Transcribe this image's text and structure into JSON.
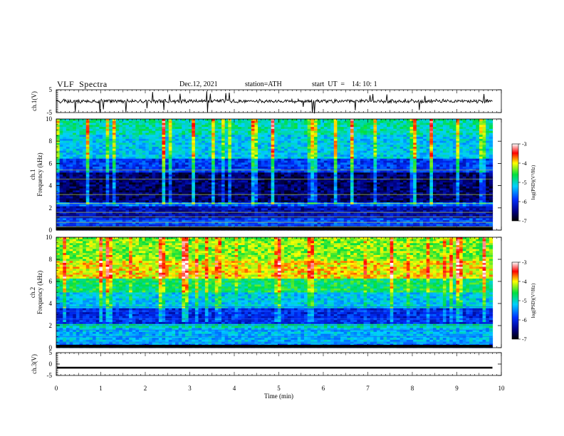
{
  "header": {
    "title": "VLF  Spectra",
    "date": "Dec.12, 2021",
    "station": "station=ATH",
    "start_ut": "start  UT  =    14: 10: 1"
  },
  "chart_data": [
    {
      "type": "line",
      "panel": "ch1-waveform",
      "ylabel": "ch.1(V)",
      "ylim": [
        -5,
        5
      ],
      "yticks": [
        "5",
        "-5"
      ],
      "xlim": [
        0,
        10
      ],
      "note": "noisy waveform centred near 0 V with spikes, 0 to ~9.8 min"
    },
    {
      "type": "heatmap",
      "panel": "ch1-spectrogram",
      "ylabel": "ch.1\nFrequency (kHz)",
      "ylim": [
        0,
        10
      ],
      "yticks": [
        "0",
        "2",
        "4",
        "6",
        "8",
        "10"
      ],
      "xlim": [
        0,
        10
      ],
      "colorbar": {
        "label": "log(PSD)(V²/Hz)",
        "range": [
          -7,
          -3
        ],
        "ticks": [
          "-3",
          "-4",
          "-5",
          "-6",
          "-7"
        ]
      },
      "bands_kHz_logpsd": [
        [
          0,
          0.4,
          -6.5
        ],
        [
          0.4,
          1.0,
          -5.8
        ],
        [
          1.0,
          2.2,
          -6.3
        ],
        [
          2.2,
          2.5,
          -5.6
        ],
        [
          2.5,
          5.2,
          -6.6
        ],
        [
          5.2,
          6.5,
          -5.9
        ],
        [
          6.5,
          8.5,
          -5.2
        ],
        [
          8.5,
          10,
          -4.9
        ]
      ]
    },
    {
      "type": "heatmap",
      "panel": "ch2-spectrogram",
      "ylabel": "ch.2\nFrequency (kHz)",
      "ylim": [
        0,
        10
      ],
      "yticks": [
        "0",
        "2",
        "4",
        "6",
        "8",
        "10"
      ],
      "xlim": [
        0,
        10
      ],
      "colorbar": {
        "label": "log(PSD)(V²/Hz)",
        "range": [
          -7,
          -3
        ],
        "ticks": [
          "-3",
          "-4",
          "-5",
          "-6",
          "-7"
        ]
      },
      "bands_kHz_logpsd": [
        [
          0,
          0.4,
          -5.6
        ],
        [
          0.4,
          1.8,
          -5.3
        ],
        [
          1.8,
          2.2,
          -4.9
        ],
        [
          2.2,
          3.6,
          -6.0
        ],
        [
          3.6,
          5.0,
          -5.2
        ],
        [
          5.0,
          6.2,
          -4.7
        ],
        [
          6.2,
          7.8,
          -4.0
        ],
        [
          7.8,
          10,
          -4.3
        ]
      ]
    },
    {
      "type": "line",
      "panel": "ch3-waveform",
      "ylabel": "ch.3(V)",
      "ylim": [
        -5,
        5
      ],
      "yticks": [
        "5",
        "0",
        "-5"
      ],
      "xlim": [
        0,
        10
      ],
      "xlabel": "Time  (min)",
      "xticks": [
        "0",
        "1",
        "2",
        "3",
        "4",
        "5",
        "6",
        "7",
        "8",
        "9",
        "10"
      ],
      "note": "flat trace near -1.5 V from 0 to ~9.8 min"
    }
  ]
}
